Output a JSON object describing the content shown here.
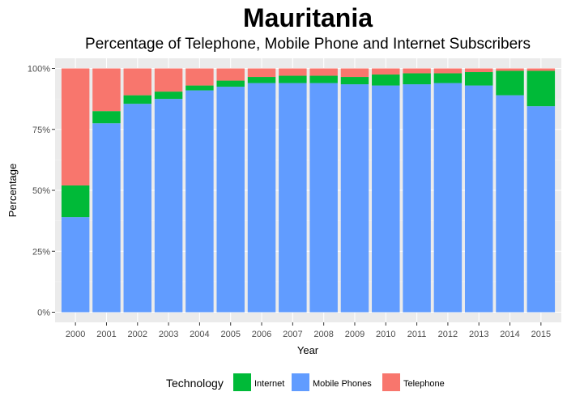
{
  "chart_data": {
    "type": "bar",
    "stacked": "percent",
    "title": "Mauritania",
    "subtitle": "Percentage of Telephone, Mobile Phone and Internet Subscribers",
    "xlabel": "Year",
    "ylabel": "Percentage",
    "ylim": [
      0,
      100
    ],
    "y_ticks": [
      "0%",
      "25%",
      "50%",
      "75%",
      "100%"
    ],
    "grid": true,
    "legend_title": "Technology",
    "legend_position": "bottom",
    "categories": [
      "2000",
      "2001",
      "2002",
      "2003",
      "2004",
      "2005",
      "2006",
      "2007",
      "2008",
      "2009",
      "2010",
      "2011",
      "2012",
      "2013",
      "2014",
      "2015"
    ],
    "series": [
      {
        "name": "Mobile Phones",
        "color": "#619CFF",
        "values": [
          39,
          77.5,
          85.5,
          87.5,
          91,
          92.5,
          94,
          94,
          94,
          93.5,
          93,
          93.5,
          94,
          93,
          89,
          84.5
        ]
      },
      {
        "name": "Internet",
        "color": "#00BA38",
        "values": [
          13,
          5,
          3.5,
          3,
          2,
          2.5,
          2.5,
          3,
          3,
          3,
          4.5,
          4.5,
          4,
          5.5,
          10,
          14.5
        ]
      },
      {
        "name": "Telephone",
        "color": "#F8766D",
        "values": [
          48,
          17.5,
          11,
          9.5,
          7,
          5,
          3.5,
          3,
          3,
          3.5,
          2.5,
          2,
          2,
          1.5,
          1,
          1
        ]
      }
    ],
    "legend_order": [
      "Internet",
      "Mobile Phones",
      "Telephone"
    ]
  }
}
